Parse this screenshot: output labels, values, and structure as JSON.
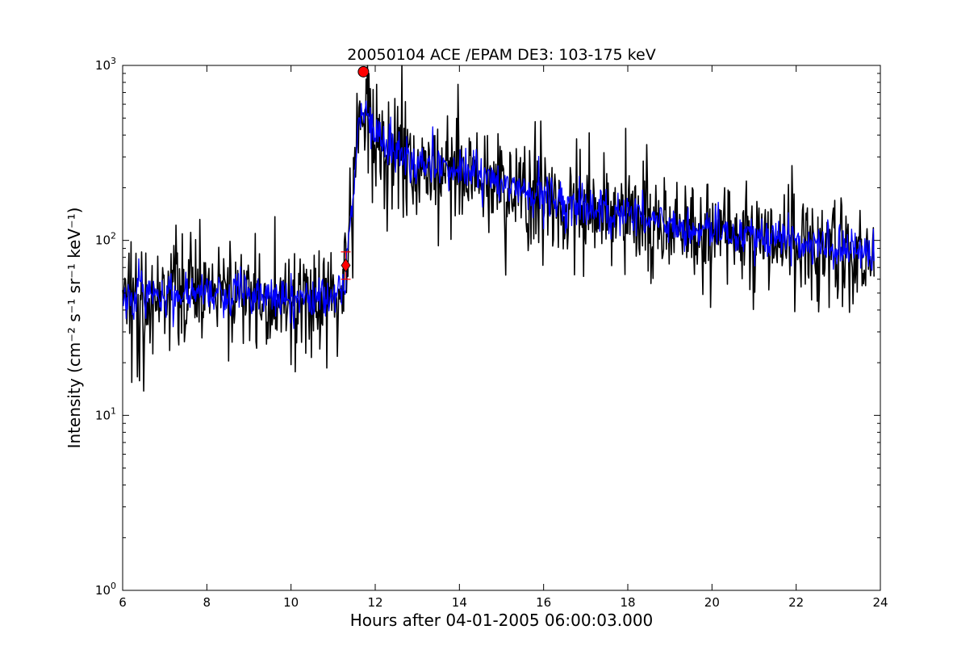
{
  "chart_data": {
    "type": "line",
    "title": "20050104 ACE /EPAM DE3: 103-175 keV",
    "xlabel": "Hours after 04-01-2005 06:00:03.000",
    "ylabel": "Intensity (cm⁻² s⁻¹ sr⁻¹ keV⁻¹)",
    "xlim": [
      6,
      24
    ],
    "ylim": [
      1,
      1000
    ],
    "yscale": "log",
    "grid": false,
    "x_ticks": [
      6,
      8,
      10,
      12,
      14,
      16,
      18,
      20,
      22,
      24
    ],
    "x_tick_labels": [
      "6",
      "8",
      "10",
      "12",
      "14",
      "16",
      "18",
      "20",
      "22",
      "24"
    ],
    "y_ticks": [
      1,
      10,
      100,
      1000
    ],
    "y_tick_labels": [
      {
        "base": "10",
        "exp": "0"
      },
      {
        "base": "10",
        "exp": "1"
      },
      {
        "base": "10",
        "exp": "2"
      },
      {
        "base": "10",
        "exp": "3"
      }
    ],
    "series": [
      {
        "color": "#000000",
        "style": "raw, high scatter",
        "x": [
          6.0,
          6.5,
          7.0,
          7.5,
          8.0,
          8.5,
          9.0,
          9.5,
          10.0,
          10.5,
          11.0,
          11.25,
          11.35,
          11.5,
          11.6,
          11.7,
          11.8,
          12.0,
          12.5,
          13.0,
          13.5,
          14.0,
          14.5,
          15.0,
          15.5,
          16.0,
          16.5,
          17.0,
          17.5,
          18.0,
          18.5,
          19.0,
          19.5,
          20.0,
          20.5,
          21.0,
          21.5,
          22.0,
          22.5,
          23.0,
          23.5,
          23.85
        ],
        "values": [
          48,
          50,
          49,
          48,
          50,
          51,
          49,
          48,
          47,
          46,
          48,
          50,
          95,
          200,
          480,
          620,
          560,
          400,
          320,
          280,
          260,
          250,
          230,
          210,
          195,
          180,
          165,
          155,
          148,
          140,
          132,
          125,
          118,
          112,
          108,
          104,
          100,
          97,
          93,
          90,
          88,
          86
        ]
      },
      {
        "color": "#0000ff",
        "style": "smoothed",
        "x": [
          6.0,
          6.5,
          7.0,
          7.5,
          8.0,
          8.5,
          9.0,
          9.5,
          10.0,
          10.5,
          11.0,
          11.25,
          11.35,
          11.5,
          11.6,
          11.7,
          11.8,
          12.0,
          12.5,
          13.0,
          13.5,
          14.0,
          14.5,
          15.0,
          15.5,
          16.0,
          16.5,
          17.0,
          17.5,
          18.0,
          18.5,
          19.0,
          19.5,
          20.0,
          20.5,
          21.0,
          21.5,
          22.0,
          22.5,
          23.0,
          23.5,
          23.85
        ],
        "values": [
          48,
          50,
          49,
          48,
          50,
          51,
          49,
          48,
          47,
          46,
          48,
          50,
          95,
          200,
          480,
          620,
          560,
          400,
          320,
          280,
          260,
          250,
          230,
          210,
          195,
          180,
          165,
          155,
          148,
          140,
          132,
          125,
          118,
          112,
          108,
          104,
          100,
          97,
          93,
          90,
          88,
          86
        ]
      }
    ],
    "markers": [
      {
        "shape": "circle",
        "color": "#ff0000",
        "x": 11.72,
        "y": 920
      },
      {
        "shape": "diamond",
        "color": "#ff0000",
        "x": 11.3,
        "y": 72,
        "err_low": 60,
        "err_high": 86
      }
    ]
  }
}
